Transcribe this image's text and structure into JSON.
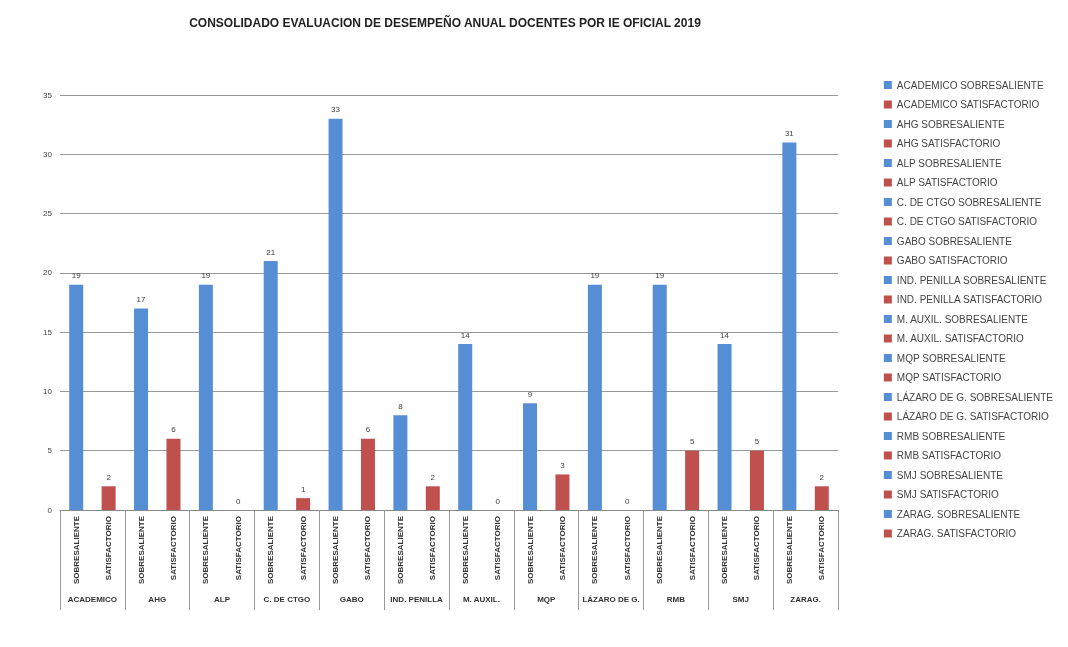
{
  "chart_data": {
    "type": "bar",
    "title": "CONSOLIDADO EVALUACION DE DESEMPEÑO ANUAL DOCENTES POR IE OFICIAL 2019",
    "categories": [
      "SOBRESALIENTE",
      "SATISFACTORIO",
      "SOBRESALIENTE",
      "SATISFACTORIO",
      "SOBRESALIENTE",
      "SATISFACTORIO",
      "SOBRESALIENTE",
      "SATISFACTORIO",
      "SOBRESALIENTE",
      "SATISFACTORIO",
      "SOBRESALIENTE",
      "SATISFACTORIO",
      "SOBRESALIENTE",
      "SATISFACTORIO",
      "SOBRESALIENTE",
      "SATISFACTORIO",
      "SOBRESALIENTE",
      "SATISFACTORIO",
      "SOBRESALIENTE",
      "SATISFACTORIO",
      "SOBRESALIENTE",
      "SATISFACTORIO",
      "SOBRESALIENTE",
      "SATISFACTORIO"
    ],
    "annotations": [
      "ACADEMICO",
      "AHG",
      "ALP",
      "C. DE CTGO",
      "GABO",
      "IND. PENILLA",
      "M. AUXIL.",
      "MQP",
      "LÁZARO DE G.",
      "RMB",
      "SMJ",
      "ZARAG."
    ],
    "series": [
      {
        "name": "ACADEMICO SOBRESALIENTE",
        "color": "#558ed5",
        "values": [
          19,
          null,
          null,
          null,
          null,
          null,
          null,
          null,
          null,
          null,
          null,
          null,
          null,
          null,
          null,
          null,
          null,
          null,
          null,
          null,
          null,
          null,
          null,
          null
        ]
      },
      {
        "name": "ACADEMICO SATISFACTORIO",
        "color": "#c0504d",
        "values": [
          null,
          2,
          null,
          null,
          null,
          null,
          null,
          null,
          null,
          null,
          null,
          null,
          null,
          null,
          null,
          null,
          null,
          null,
          null,
          null,
          null,
          null,
          null,
          null
        ]
      },
      {
        "name": "AHG SOBRESALIENTE",
        "color": "#558ed5",
        "values": [
          null,
          null,
          17,
          null,
          null,
          null,
          null,
          null,
          null,
          null,
          null,
          null,
          null,
          null,
          null,
          null,
          null,
          null,
          null,
          null,
          null,
          null,
          null,
          null
        ]
      },
      {
        "name": "AHG SATISFACTORIO",
        "color": "#c0504d",
        "values": [
          null,
          null,
          null,
          6,
          null,
          null,
          null,
          null,
          null,
          null,
          null,
          null,
          null,
          null,
          null,
          null,
          null,
          null,
          null,
          null,
          null,
          null,
          null,
          null
        ]
      },
      {
        "name": "ALP SOBRESALIENTE",
        "color": "#558ed5",
        "values": [
          null,
          null,
          null,
          null,
          19,
          null,
          null,
          null,
          null,
          null,
          null,
          null,
          null,
          null,
          null,
          null,
          null,
          null,
          null,
          null,
          null,
          null,
          null,
          null
        ]
      },
      {
        "name": "ALP SATISFACTORIO",
        "color": "#c0504d",
        "values": [
          null,
          null,
          null,
          null,
          null,
          0,
          null,
          null,
          null,
          null,
          null,
          null,
          null,
          null,
          null,
          null,
          null,
          null,
          null,
          null,
          null,
          null,
          null,
          null
        ]
      },
      {
        "name": "C. DE CTGO SOBRESALIENTE",
        "color": "#558ed5",
        "values": [
          null,
          null,
          null,
          null,
          null,
          null,
          21,
          null,
          null,
          null,
          null,
          null,
          null,
          null,
          null,
          null,
          null,
          null,
          null,
          null,
          null,
          null,
          null,
          null
        ]
      },
      {
        "name": "C. DE CTGO SATISFACTORIO",
        "color": "#c0504d",
        "values": [
          null,
          null,
          null,
          null,
          null,
          null,
          null,
          1,
          null,
          null,
          null,
          null,
          null,
          null,
          null,
          null,
          null,
          null,
          null,
          null,
          null,
          null,
          null,
          null
        ]
      },
      {
        "name": "GABO SOBRESALIENTE",
        "color": "#558ed5",
        "values": [
          null,
          null,
          null,
          null,
          null,
          null,
          null,
          null,
          33,
          null,
          null,
          null,
          null,
          null,
          null,
          null,
          null,
          null,
          null,
          null,
          null,
          null,
          null,
          null
        ]
      },
      {
        "name": "GABO SATISFACTORIO",
        "color": "#c0504d",
        "values": [
          null,
          null,
          null,
          null,
          null,
          null,
          null,
          null,
          null,
          6,
          null,
          null,
          null,
          null,
          null,
          null,
          null,
          null,
          null,
          null,
          null,
          null,
          null,
          null
        ]
      },
      {
        "name": "IND. PENILLA SOBRESALIENTE",
        "color": "#558ed5",
        "values": [
          null,
          null,
          null,
          null,
          null,
          null,
          null,
          null,
          null,
          null,
          8,
          null,
          null,
          null,
          null,
          null,
          null,
          null,
          null,
          null,
          null,
          null,
          null,
          null
        ]
      },
      {
        "name": "IND. PENILLA SATISFACTORIO",
        "color": "#c0504d",
        "values": [
          null,
          null,
          null,
          null,
          null,
          null,
          null,
          null,
          null,
          null,
          null,
          2,
          null,
          null,
          null,
          null,
          null,
          null,
          null,
          null,
          null,
          null,
          null,
          null
        ]
      },
      {
        "name": "M. AUXIL. SOBRESALIENTE",
        "color": "#558ed5",
        "values": [
          null,
          null,
          null,
          null,
          null,
          null,
          null,
          null,
          null,
          null,
          null,
          null,
          14,
          null,
          null,
          null,
          null,
          null,
          null,
          null,
          null,
          null,
          null,
          null
        ]
      },
      {
        "name": "M. AUXIL. SATISFACTORIO",
        "color": "#c0504d",
        "values": [
          null,
          null,
          null,
          null,
          null,
          null,
          null,
          null,
          null,
          null,
          null,
          null,
          null,
          0,
          null,
          null,
          null,
          null,
          null,
          null,
          null,
          null,
          null,
          null
        ]
      },
      {
        "name": "MQP SOBRESALIENTE",
        "color": "#558ed5",
        "values": [
          null,
          null,
          null,
          null,
          null,
          null,
          null,
          null,
          null,
          null,
          null,
          null,
          null,
          null,
          9,
          null,
          null,
          null,
          null,
          null,
          null,
          null,
          null,
          null
        ]
      },
      {
        "name": "MQP SATISFACTORIO",
        "color": "#c0504d",
        "values": [
          null,
          null,
          null,
          null,
          null,
          null,
          null,
          null,
          null,
          null,
          null,
          null,
          null,
          null,
          null,
          3,
          null,
          null,
          null,
          null,
          null,
          null,
          null,
          null
        ]
      },
      {
        "name": "LÁZARO DE G. SOBRESALIENTE",
        "color": "#558ed5",
        "values": [
          null,
          null,
          null,
          null,
          null,
          null,
          null,
          null,
          null,
          null,
          null,
          null,
          null,
          null,
          null,
          null,
          19,
          null,
          null,
          null,
          null,
          null,
          null,
          null
        ]
      },
      {
        "name": "LÁZARO DE G. SATISFACTORIO",
        "color": "#c0504d",
        "values": [
          null,
          null,
          null,
          null,
          null,
          null,
          null,
          null,
          null,
          null,
          null,
          null,
          null,
          null,
          null,
          null,
          null,
          0,
          null,
          null,
          null,
          null,
          null,
          null
        ]
      },
      {
        "name": "RMB SOBRESALIENTE",
        "color": "#558ed5",
        "values": [
          null,
          null,
          null,
          null,
          null,
          null,
          null,
          null,
          null,
          null,
          null,
          null,
          null,
          null,
          null,
          null,
          null,
          null,
          19,
          null,
          null,
          null,
          null,
          null
        ]
      },
      {
        "name": "RMB SATISFACTORIO",
        "color": "#c0504d",
        "values": [
          null,
          null,
          null,
          null,
          null,
          null,
          null,
          null,
          null,
          null,
          null,
          null,
          null,
          null,
          null,
          null,
          null,
          null,
          null,
          5,
          null,
          null,
          null,
          null
        ]
      },
      {
        "name": "SMJ SOBRESALIENTE",
        "color": "#558ed5",
        "values": [
          null,
          null,
          null,
          null,
          null,
          null,
          null,
          null,
          null,
          null,
          null,
          null,
          null,
          null,
          null,
          null,
          null,
          null,
          null,
          null,
          14,
          null,
          null,
          null
        ]
      },
      {
        "name": "SMJ SATISFACTORIO",
        "color": "#c0504d",
        "values": [
          null,
          null,
          null,
          null,
          null,
          null,
          null,
          null,
          null,
          null,
          null,
          null,
          null,
          null,
          null,
          null,
          null,
          null,
          null,
          null,
          null,
          5,
          null,
          null
        ]
      },
      {
        "name": "ZARAG. SOBRESALIENTE",
        "color": "#558ed5",
        "values": [
          null,
          null,
          null,
          null,
          null,
          null,
          null,
          null,
          null,
          null,
          null,
          null,
          null,
          null,
          null,
          null,
          null,
          null,
          null,
          null,
          null,
          null,
          31,
          null
        ]
      },
      {
        "name": "ZARAG. SATISFACTORIO",
        "color": "#c0504d",
        "values": [
          null,
          null,
          null,
          null,
          null,
          null,
          null,
          null,
          null,
          null,
          null,
          null,
          null,
          null,
          null,
          null,
          null,
          null,
          null,
          null,
          null,
          null,
          null,
          2
        ]
      }
    ],
    "ylim": [
      0,
      35
    ],
    "yticks": [
      0,
      5,
      10,
      15,
      20,
      25,
      30,
      35
    ],
    "grid": "y",
    "legend": "right",
    "data_labels": true
  }
}
